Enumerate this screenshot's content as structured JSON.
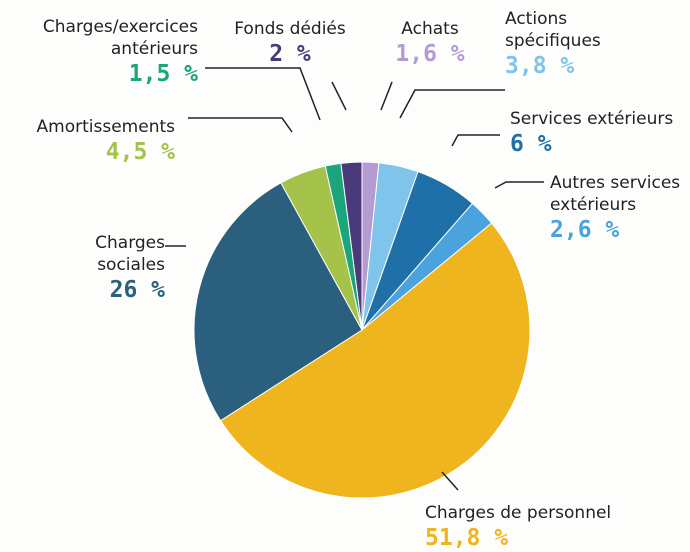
{
  "chart_data": {
    "type": "pie",
    "categories": [
      "Achats",
      "Actions spécifiques",
      "Services extérieurs",
      "Autres services extérieurs",
      "Charges de personnel",
      "Charges sociales",
      "Amortissements",
      "Charges/exercices antérieurs",
      "Fonds dédiés"
    ],
    "values": [
      1.6,
      3.8,
      6,
      2.6,
      51.8,
      26,
      4.5,
      1.5,
      2
    ],
    "value_labels": [
      "1,6 %",
      "3,8 %",
      "6 %",
      "2,6 %",
      "51,8 %",
      "26 %",
      "4,5 %",
      "1,5 %",
      "2 %"
    ],
    "colors": [
      "#b49bd1",
      "#7fc4ea",
      "#1f6fa8",
      "#4aa3dc",
      "#eeb51e",
      "#2b5f7e",
      "#a5c24a",
      "#1aa57a",
      "#4b3a7a"
    ]
  }
}
